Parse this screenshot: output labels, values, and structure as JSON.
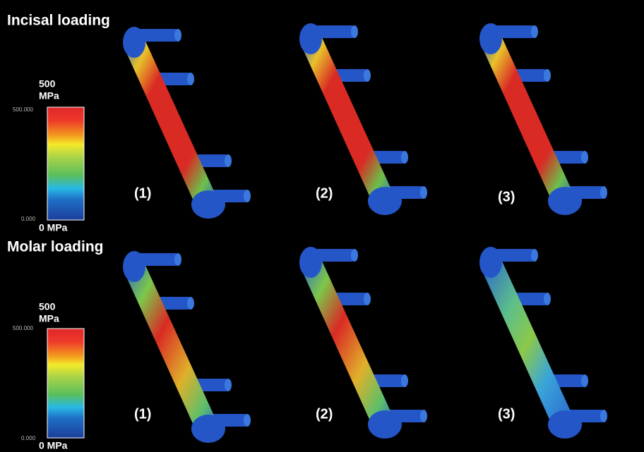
{
  "panels": [
    {
      "title": "Incisal loading",
      "legend": {
        "max_label": "500",
        "unit": "MPa",
        "max_tick": "500.000",
        "min_tick": "0.000",
        "min_label": "0 MPa"
      },
      "labels": [
        "(1)",
        "(2)",
        "(3)"
      ]
    },
    {
      "title": "Molar loading",
      "legend": {
        "max_label": "500",
        "unit": "MPa",
        "max_tick": "500.000",
        "min_tick": "0.000",
        "min_label": "0 MPa"
      },
      "labels": [
        "(1)",
        "(2)",
        "(3)"
      ]
    }
  ]
}
